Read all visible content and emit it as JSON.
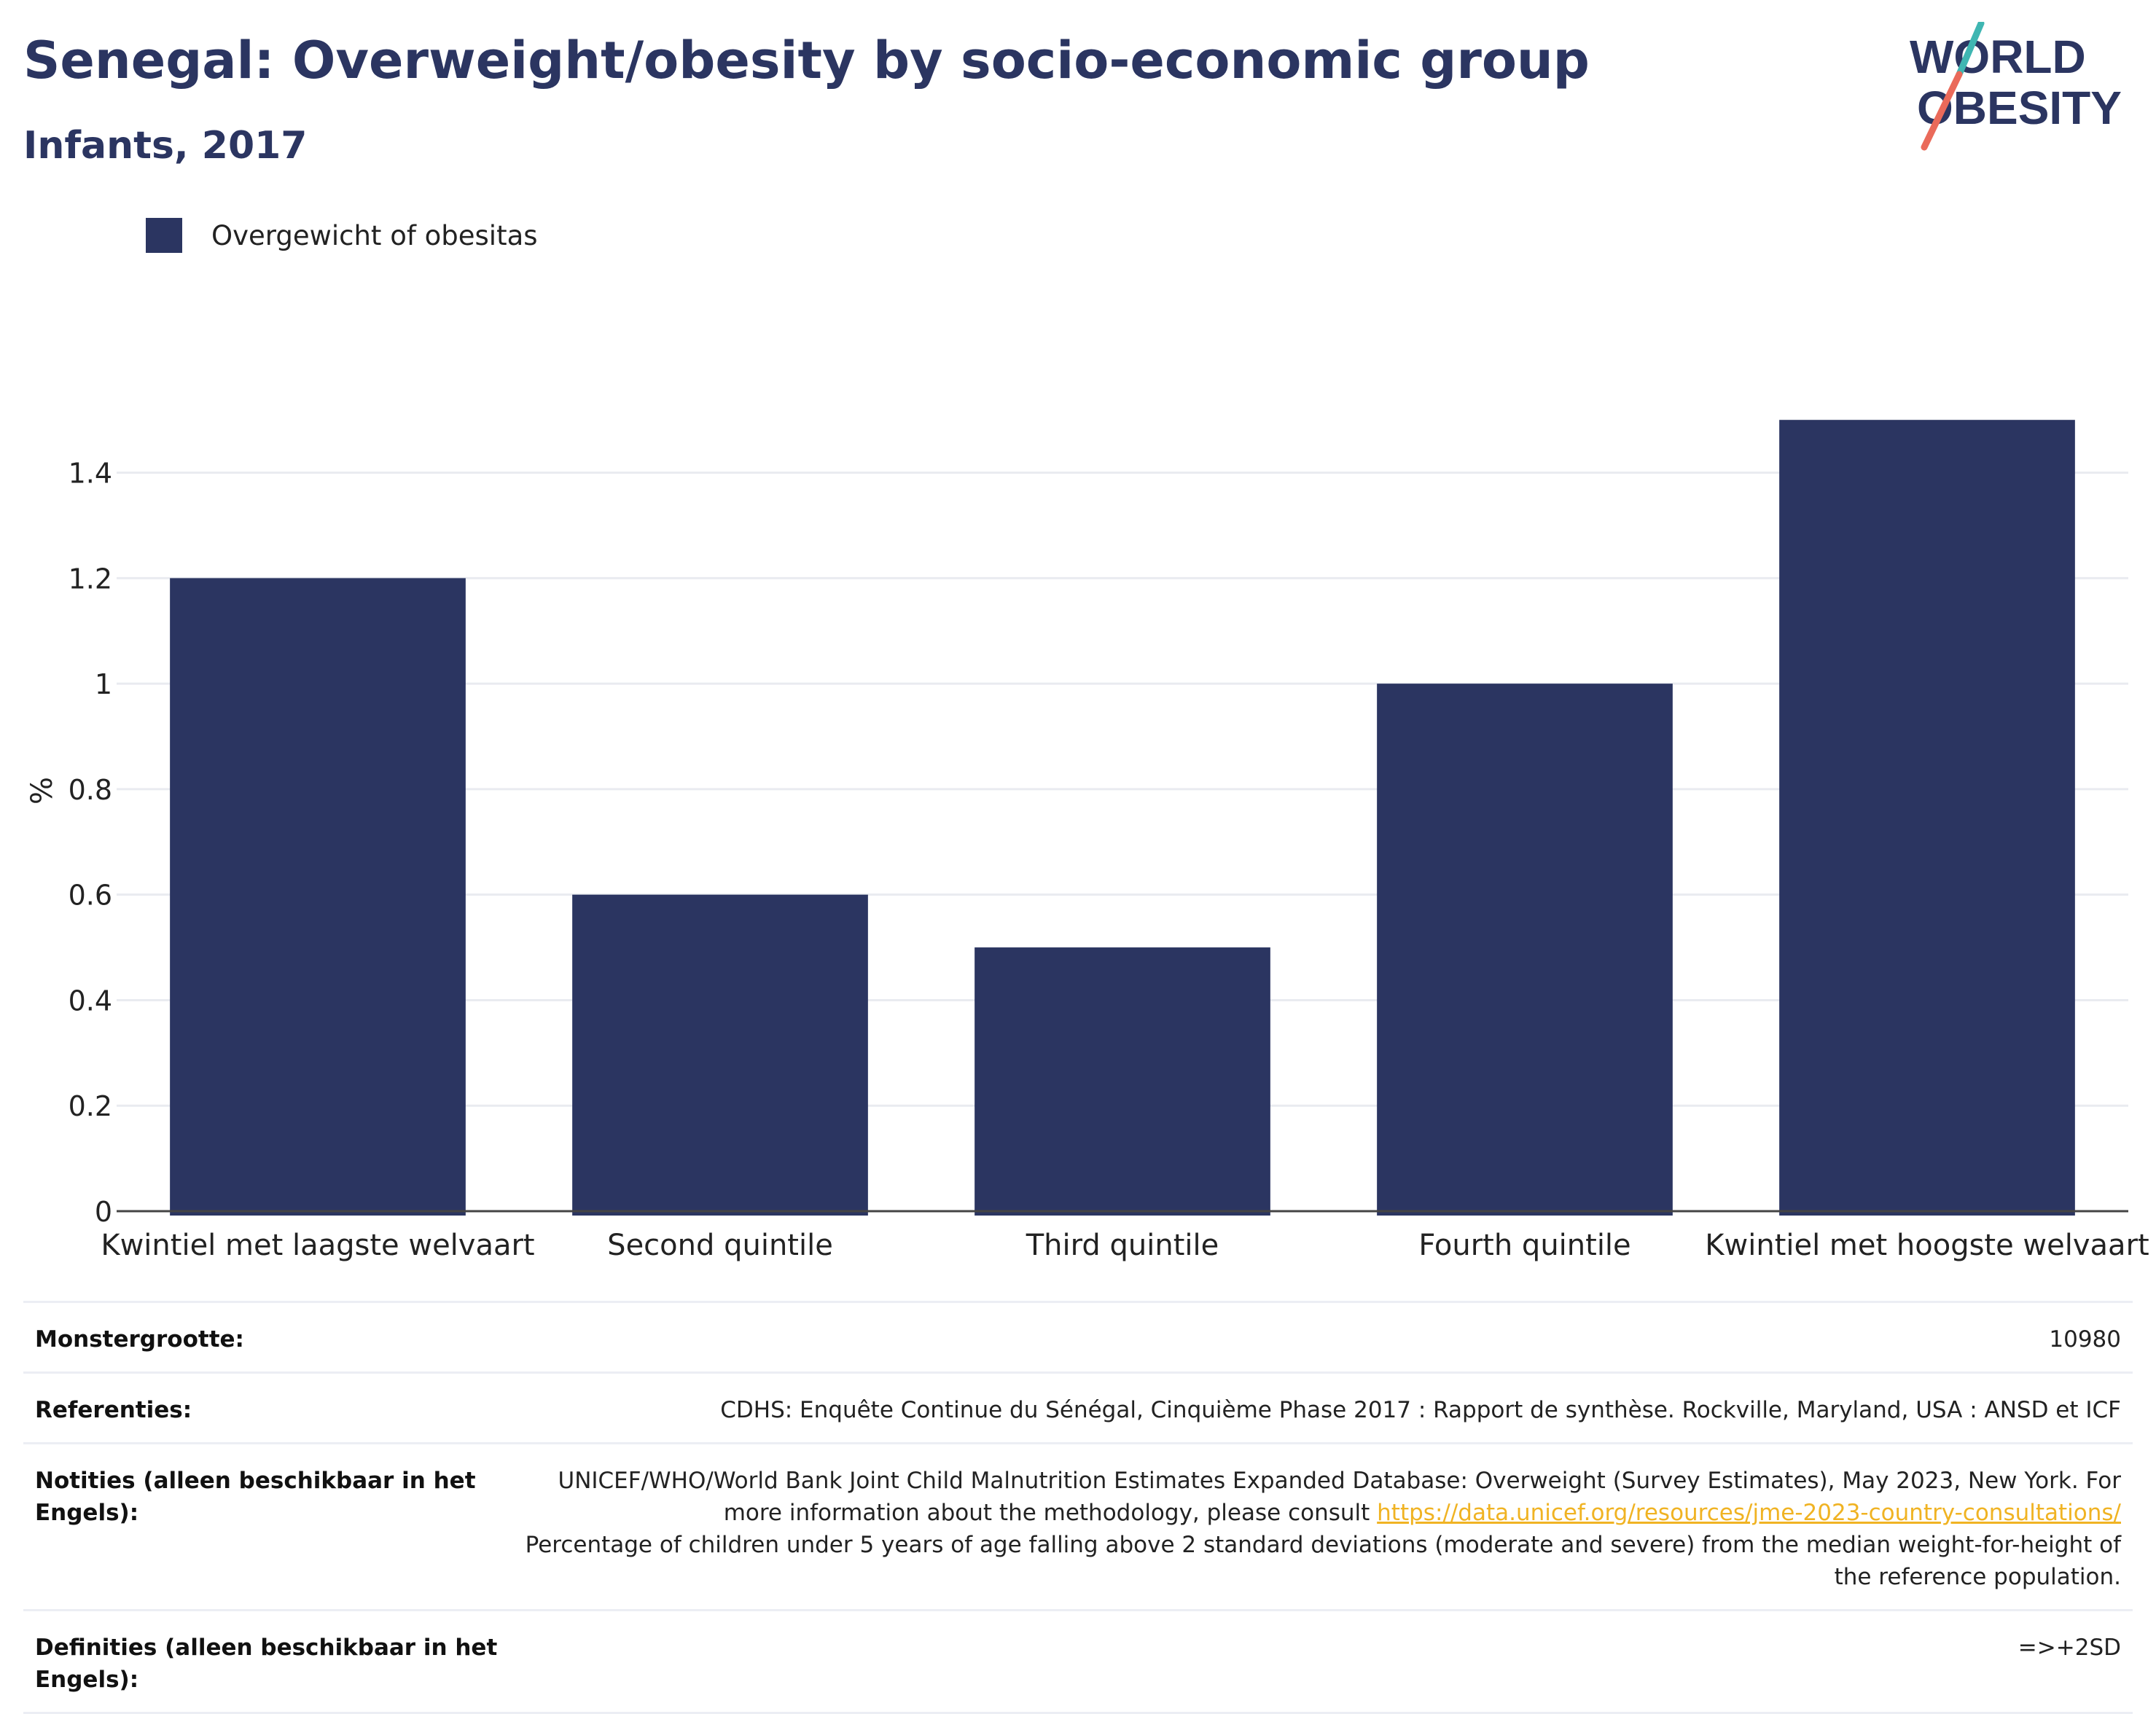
{
  "title": "Senegal: Overweight/obesity by socio-economic group",
  "subtitle": "Infants, 2017",
  "logo": {
    "line1": "WORLD",
    "line2": "OBESITY",
    "colors": {
      "text": "#2b3561",
      "slash_top": "#3fb6b2",
      "slash_bottom": "#ea6a5a"
    }
  },
  "legend": {
    "label": "Overgewicht of obesitas",
    "color": "#2b3561"
  },
  "chart_data": {
    "type": "bar",
    "categories": [
      "Kwintiel met laagste welvaart",
      "Second quintile",
      "Third quintile",
      "Fourth quintile",
      "Kwintiel met hoogste welvaart"
    ],
    "series": [
      {
        "name": "Overgewicht of obesitas",
        "values": [
          1.2,
          0.6,
          0.5,
          1.0,
          1.5
        ]
      }
    ],
    "ylabel": "%",
    "xlabel": "",
    "ylim": [
      0,
      1.55
    ],
    "yticks": [
      0,
      0.2,
      0.4,
      0.6,
      0.8,
      1,
      1.2,
      1.4
    ],
    "grid": true,
    "legend_position": "top-left",
    "bar_color": "#2b3561"
  },
  "meta": {
    "sample_label": "Monstergrootte:",
    "sample_value": "10980",
    "refs_label": "Referenties:",
    "refs_value": "CDHS: Enquête Continue du Sénégal, Cinquième Phase 2017 : Rapport de synthèse. Rockville, Maryland, USA : ANSD et ICF",
    "notes_label": "Notities (alleen beschikbaar in het Engels):",
    "notes_text_1": "UNICEF/WHO/World Bank Joint Child Malnutrition Estimates Expanded Database: Overweight (Survey Estimates), May 2023, New York. For more information about the methodology, please consult ",
    "notes_link": "https://data.unicef.org/resources/jme-2023-country-consultations/",
    "notes_text_2": "Percentage of children under 5 years of age falling above 2 standard deviations (moderate and severe) from the median weight-for-height of the reference population.",
    "defs_label": "Definities (alleen beschikbaar in het Engels):",
    "defs_value": "=>+2SD"
  }
}
